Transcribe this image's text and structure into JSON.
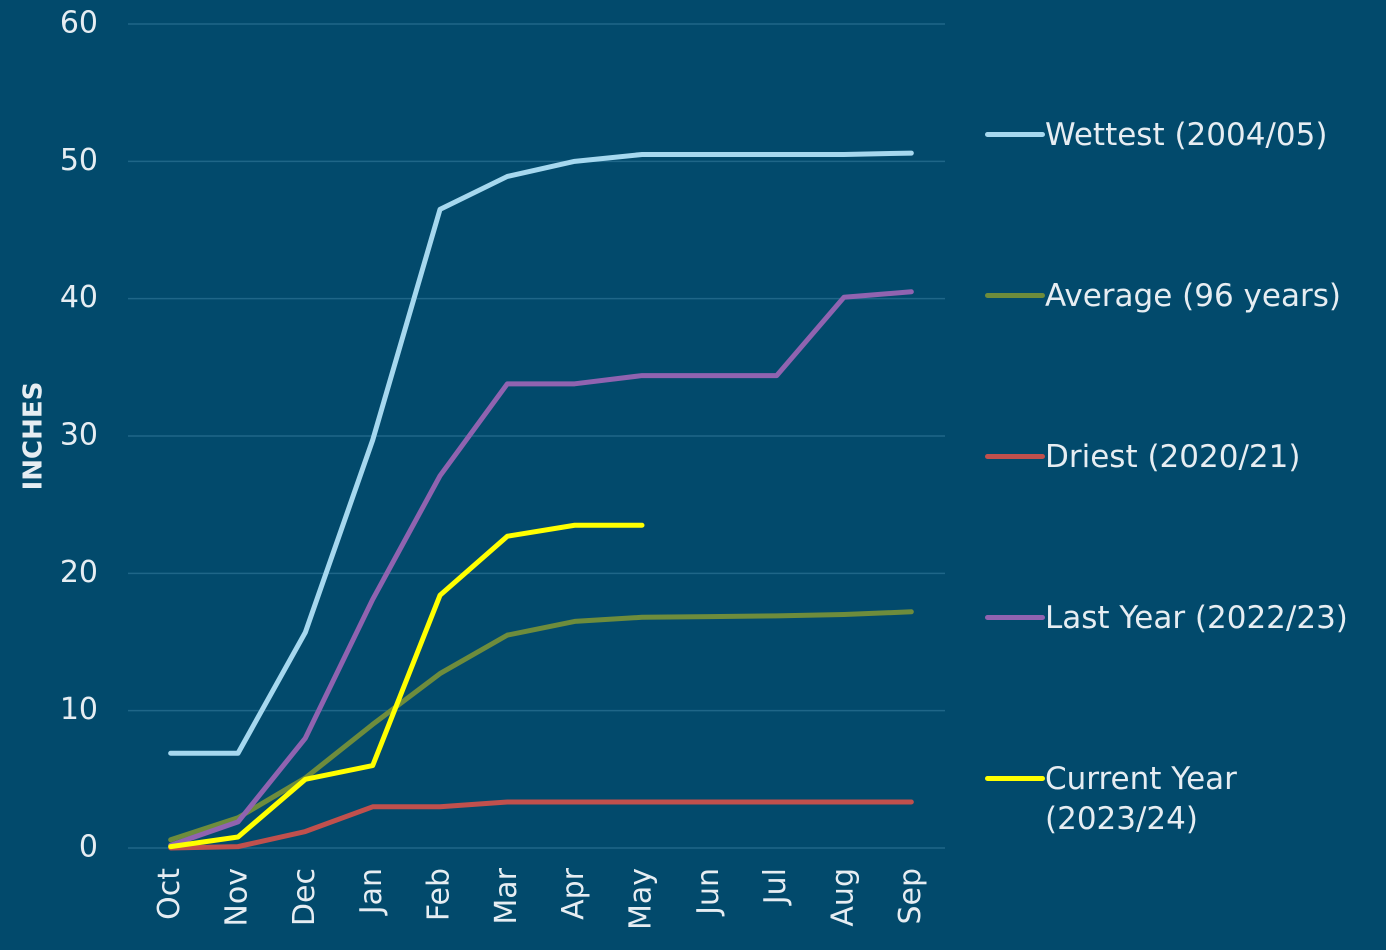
{
  "chart_data": {
    "type": "line",
    "y_label": "INCHES",
    "categories": [
      "Oct",
      "Nov",
      "Dec",
      "Jan",
      "Feb",
      "Mar",
      "Apr",
      "May",
      "Jun",
      "Jul",
      "Aug",
      "Sep"
    ],
    "ylim": [
      0,
      60
    ],
    "yticks": [
      0,
      10,
      20,
      30,
      40,
      50,
      60
    ],
    "grid": true,
    "legend": "right",
    "series": [
      {
        "name": "Wettest (2004/05)",
        "color": "#a6d8ef",
        "values": [
          6.9,
          6.9,
          15.7,
          29.7,
          46.5,
          48.9,
          50.0,
          50.5,
          50.5,
          50.5,
          50.5,
          50.6
        ]
      },
      {
        "name": "Average (96 years)",
        "color": "#6e8c3c",
        "values": [
          0.6,
          2.2,
          5.1,
          9.0,
          12.7,
          15.5,
          16.5,
          16.8,
          16.85,
          16.9,
          17.0,
          17.2
        ]
      },
      {
        "name": "Driest (2020/21)",
        "color": "#c0504d",
        "values": [
          0,
          0.1,
          1.2,
          3.0,
          3.0,
          3.35,
          3.35,
          3.35,
          3.35,
          3.35,
          3.35,
          3.35
        ]
      },
      {
        "name": "Last Year (2022/23)",
        "color": "#9063b0",
        "values": [
          0.2,
          1.9,
          8.0,
          18.1,
          27.1,
          33.8,
          33.8,
          34.4,
          34.4,
          34.4,
          40.1,
          40.5
        ]
      },
      {
        "name": "Current Year (2023/24)",
        "color": "#ffff00",
        "values": [
          0.1,
          0.8,
          5.0,
          6.0,
          18.4,
          22.7,
          23.5,
          23.5,
          null,
          null,
          null,
          null
        ]
      }
    ]
  }
}
